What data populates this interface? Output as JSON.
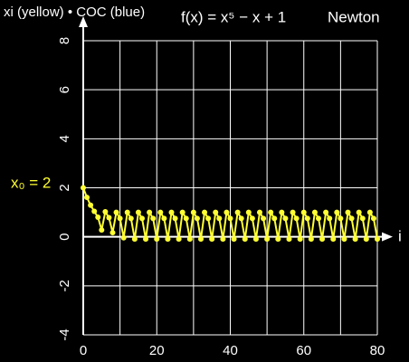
{
  "chart_data": {
    "type": "line",
    "title": "f(x) = x⁵ − x + 1",
    "subtitle": "Newton",
    "y_label": "xi (yellow) • COC (blue)",
    "x_label": "i",
    "annotation": "x₀ = 2",
    "x": [
      0,
      1,
      2,
      3,
      4,
      5,
      6,
      7,
      8,
      9,
      10,
      11,
      12,
      13,
      14,
      15,
      16,
      17,
      18,
      19,
      20,
      21,
      22,
      23,
      24,
      25,
      26,
      27,
      28,
      29,
      30,
      31,
      32,
      33,
      34,
      35,
      36,
      37,
      38,
      39,
      40,
      41,
      42,
      43,
      44,
      45,
      46,
      47,
      48,
      49,
      50,
      51,
      52,
      53,
      54,
      55,
      56,
      57,
      58,
      59,
      60,
      61,
      62,
      63,
      64,
      65,
      66,
      67,
      68,
      69,
      70,
      71,
      72,
      73,
      74,
      75,
      76,
      77,
      78,
      79,
      80
    ],
    "series": [
      {
        "name": "xi",
        "color": "#ffff33",
        "values": [
          2,
          1.61,
          1.29,
          1.04,
          0.8,
          0.28,
          1.02,
          0.78,
          0.17,
          1,
          0.75,
          -0.04,
          1,
          0.75,
          -0.09,
          1,
          0.75,
          -0.09,
          1,
          0.75,
          -0.09,
          1,
          0.75,
          -0.09,
          1,
          0.75,
          -0.09,
          1,
          0.75,
          -0.09,
          1,
          0.75,
          -0.09,
          1,
          0.75,
          -0.09,
          1,
          0.75,
          -0.09,
          1,
          0.75,
          -0.09,
          1,
          0.75,
          -0.09,
          1,
          0.75,
          -0.09,
          1,
          0.75,
          -0.09,
          1,
          0.75,
          -0.09,
          1,
          0.75,
          -0.09,
          1,
          0.75,
          -0.09,
          1,
          0.75,
          -0.09,
          1,
          0.75,
          -0.09,
          1,
          0.75,
          -0.09,
          1,
          0.75,
          -0.09,
          1,
          0.75,
          -0.09,
          1,
          0.75,
          -0.09,
          1,
          0.75,
          -0.09
        ]
      }
    ],
    "xlim": [
      0,
      80
    ],
    "ylim": [
      -4,
      8
    ],
    "xticks": [
      0,
      20,
      40,
      60,
      80
    ],
    "xgrid": [
      0,
      10,
      20,
      30,
      40,
      50,
      60,
      70,
      80
    ],
    "yticks": [
      8,
      6,
      4,
      2,
      0,
      -2,
      -4
    ],
    "grid": true
  }
}
